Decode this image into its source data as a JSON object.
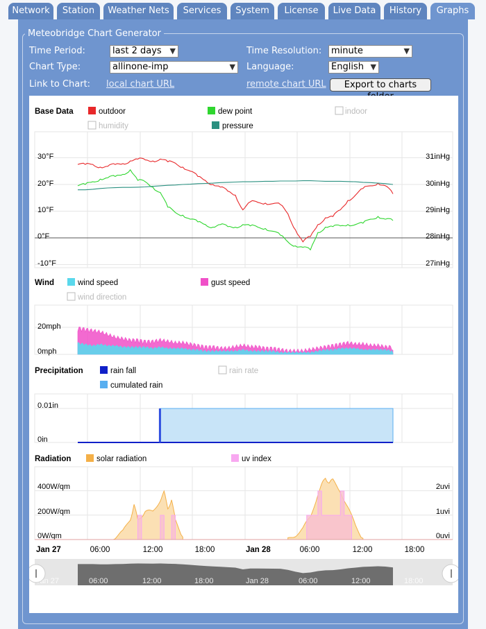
{
  "tabs": [
    {
      "label": "Network",
      "active": false
    },
    {
      "label": "Station",
      "active": false
    },
    {
      "label": "Weather Nets",
      "active": false
    },
    {
      "label": "Services",
      "active": false
    },
    {
      "label": "System",
      "active": false
    },
    {
      "label": "License",
      "active": false
    },
    {
      "label": "Live Data",
      "active": false
    },
    {
      "label": "History",
      "active": false
    },
    {
      "label": "Graphs",
      "active": true
    }
  ],
  "form": {
    "title": "Meteobridge Chart Generator",
    "time_period_label": "Time Period:",
    "time_period_value": "last 2 days",
    "time_resolution_label": "Time Resolution:",
    "time_resolution_value": "minute",
    "chart_type_label": "Chart Type:",
    "chart_type_value": "allinone-imp",
    "language_label": "Language:",
    "language_value": "English",
    "link_label": "Link to Chart:",
    "local_link": "local chart URL",
    "remote_link": "remote chart URL",
    "export_button": "Export to charts folder"
  },
  "colors": {
    "outdoor": "#e8282a",
    "dew_point": "#2fd62f",
    "pressure": "#2a9080",
    "wind_speed": "#5ad8ec",
    "gust_speed": "#f050c8",
    "rain_fall": "#1020c8",
    "cumulated_rain": "#58aef0",
    "solar_radiation": "#f4b048",
    "uv_index": "#f8a8f0",
    "disabled": "#bbbbbb"
  },
  "chart_data": [
    {
      "type": "line",
      "panel_title": "Base Data",
      "series_legend": [
        {
          "name": "outdoor",
          "enabled": true
        },
        {
          "name": "dew point",
          "enabled": true
        },
        {
          "name": "indoor",
          "enabled": false
        },
        {
          "name": "humidity",
          "enabled": false
        },
        {
          "name": "pressure",
          "enabled": true
        }
      ],
      "y_ticks_left": [
        "30°F",
        "20°F",
        "10°F",
        "0°F",
        "-10°F"
      ],
      "y_ticks_right": [
        "31inHg",
        "30inHg",
        "29inHg",
        "28inHg",
        "27inHg"
      ],
      "ylim": [
        -10,
        30
      ],
      "ylim_right": [
        27,
        31
      ],
      "x_hours": [
        0,
        1,
        2,
        3,
        4,
        5,
        6,
        7,
        8,
        9,
        10,
        11,
        12,
        13,
        14,
        15,
        16,
        17,
        18,
        19,
        20,
        21,
        22,
        23,
        24,
        25,
        26,
        27,
        28,
        29,
        30,
        31,
        32,
        33,
        34,
        35,
        36,
        37,
        38,
        39,
        40,
        41,
        42
      ],
      "series": [
        {
          "name": "outdoor",
          "values": [
            27.5,
            27.5,
            27.5,
            26.5,
            26.8,
            27.5,
            27.8,
            28.8,
            29.5,
            29.2,
            28.8,
            29.5,
            28.5,
            28.0,
            26.5,
            25.0,
            23.0,
            21.5,
            20.0,
            19.0,
            17.5,
            16.0,
            10.5,
            13.5,
            13.3,
            13.0,
            12.8,
            12.5,
            9.0,
            3.0,
            -1.5,
            0.5,
            5.0,
            7.5,
            8.0,
            10.5,
            14.0,
            16.0,
            18.5,
            19.5,
            20.5,
            19.5,
            16.5
          ]
        },
        {
          "name": "dew point",
          "values": [
            19.5,
            20.0,
            21.0,
            22.0,
            22.5,
            23.0,
            23.8,
            25.5,
            21.5,
            21.0,
            19.0,
            17.0,
            11.5,
            9.5,
            8.5,
            7.0,
            6.0,
            5.0,
            4.0,
            5.0,
            4.2,
            4.0,
            5.0,
            4.5,
            4.0,
            3.5,
            2.5,
            1.0,
            -1.5,
            -3.0,
            -3.5,
            -4.5,
            2.0,
            4.0,
            4.2,
            4.5,
            5.0,
            5.0,
            5.5,
            7.0,
            8.0,
            7.0,
            6.5
          ]
        },
        {
          "name": "pressure",
          "values": [
            29.8,
            29.8,
            29.82,
            29.85,
            29.87,
            29.88,
            29.89,
            29.89,
            29.9,
            29.91,
            29.93,
            29.95,
            29.97,
            29.98,
            30.0,
            30.01,
            30.03,
            30.04,
            30.05,
            30.07,
            30.08,
            30.09,
            30.1,
            30.1,
            30.11,
            30.12,
            30.12,
            30.13,
            30.13,
            30.13,
            30.14,
            30.14,
            30.13,
            30.12,
            30.12,
            30.12,
            30.11,
            30.1,
            30.08,
            30.07,
            30.05,
            30.03,
            30.0
          ]
        }
      ]
    },
    {
      "type": "area",
      "panel_title": "Wind",
      "series_legend": [
        {
          "name": "wind speed",
          "enabled": true
        },
        {
          "name": "gust speed",
          "enabled": true
        },
        {
          "name": "wind direction",
          "enabled": false
        }
      ],
      "y_ticks_left": [
        "20mph",
        "0mph"
      ],
      "ylim": [
        0,
        26
      ],
      "x_hours": [
        0,
        1,
        2,
        3,
        4,
        5,
        6,
        7,
        8,
        9,
        10,
        11,
        12,
        13,
        14,
        15,
        16,
        17,
        18,
        19,
        20,
        21,
        22,
        23,
        24,
        25,
        26,
        27,
        28,
        29,
        30,
        31,
        32,
        33,
        34,
        35,
        36,
        37,
        38,
        39,
        40,
        41,
        42
      ],
      "series": [
        {
          "name": "gust speed",
          "values": [
            17,
            16,
            15,
            14,
            12,
            10,
            9,
            8,
            8,
            7,
            7,
            8,
            7,
            6,
            6,
            5,
            4,
            3,
            3,
            2,
            2,
            3,
            4,
            3,
            3,
            2,
            2,
            1,
            0,
            0,
            0,
            1,
            2,
            3,
            4,
            5,
            6,
            5,
            5,
            4,
            4,
            3,
            3
          ]
        },
        {
          "name": "wind speed",
          "values": [
            7,
            6,
            5,
            6,
            5,
            5,
            4,
            4,
            4,
            4,
            3,
            4,
            3,
            3,
            3,
            2,
            2,
            1,
            1,
            1,
            1,
            1,
            2,
            1,
            1,
            1,
            1,
            0,
            0,
            0,
            0,
            0,
            1,
            2,
            2,
            3,
            3,
            3,
            2,
            2,
            2,
            2,
            1
          ]
        }
      ]
    },
    {
      "type": "area",
      "panel_title": "Precipitation",
      "series_legend": [
        {
          "name": "rain fall",
          "enabled": true
        },
        {
          "name": "rain rate",
          "enabled": false
        },
        {
          "name": "cumulated rain",
          "enabled": true
        }
      ],
      "y_ticks_left": [
        "0.01in",
        "0in"
      ],
      "ylim": [
        0,
        0.012
      ],
      "series": [
        {
          "name": "rain fall",
          "x": [
            11
          ],
          "values": [
            0.01
          ]
        },
        {
          "name": "cumulated rain",
          "x": [
            0,
            10.9,
            11,
            42
          ],
          "values": [
            0,
            0,
            0.01,
            0.01
          ]
        }
      ]
    },
    {
      "type": "area",
      "panel_title": "Radiation",
      "series_legend": [
        {
          "name": "solar radiation",
          "enabled": true
        },
        {
          "name": "uv index",
          "enabled": true
        }
      ],
      "y_ticks_left": [
        "400W/qm",
        "200W/qm",
        "0W/qm"
      ],
      "y_ticks_right": [
        "2uvi",
        "1uvi",
        "0uvi"
      ],
      "ylim": [
        0,
        500
      ],
      "ylim_right": [
        0,
        2.5
      ],
      "series": [
        {
          "name": "solar radiation",
          "x": [
            4,
            5,
            6,
            7,
            7.5,
            8,
            8.5,
            9,
            10,
            11,
            11.5,
            12,
            12.5,
            13,
            14,
            28,
            29,
            30,
            31,
            32,
            32.5,
            33,
            33.5,
            34,
            35,
            36,
            37,
            38
          ],
          "values": [
            0,
            20,
            60,
            170,
            290,
            150,
            200,
            220,
            230,
            330,
            380,
            260,
            330,
            150,
            20,
            0,
            40,
            90,
            180,
            380,
            440,
            510,
            470,
            480,
            400,
            260,
            110,
            10
          ]
        },
        {
          "name": "uv index",
          "x": [
            7,
            8,
            8.5,
            11,
            11.5,
            12.5,
            13,
            30,
            30.5,
            32,
            32.5,
            35,
            35.5,
            36,
            36.5
          ],
          "values": [
            0,
            1,
            0,
            1,
            0,
            1,
            0,
            0,
            1,
            2,
            1,
            2,
            1,
            1,
            0
          ]
        }
      ]
    }
  ],
  "x_axis": {
    "labels": [
      "Jan 27",
      "06:00",
      "12:00",
      "18:00",
      "Jan 28",
      "06:00",
      "12:00",
      "18:00"
    ],
    "bold": [
      true,
      false,
      false,
      false,
      true,
      false,
      false,
      false
    ]
  },
  "navigator": {
    "labels": [
      "Jan 27",
      "06:00",
      "12:00",
      "18:00",
      "Jan 28",
      "06:00",
      "12:00",
      "18:00"
    ]
  }
}
